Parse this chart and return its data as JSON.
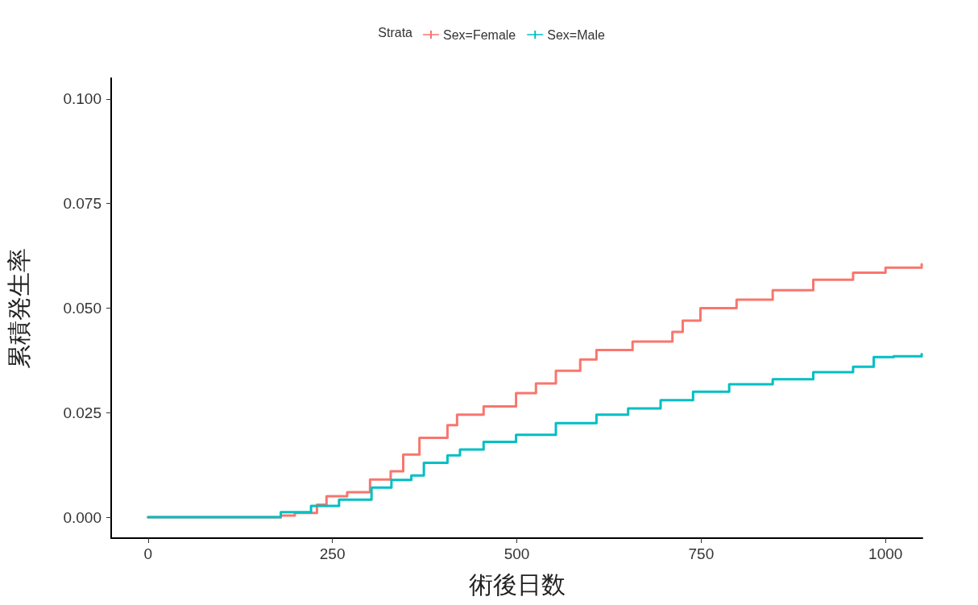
{
  "chart_data": {
    "type": "step",
    "xlabel": "術後日数",
    "ylabel": "累積発生率",
    "legend_title": "Strata",
    "legend": "top",
    "grid": false,
    "marker": "none",
    "xlim": [
      -50,
      1050
    ],
    "xticks": [
      0,
      250,
      500,
      750,
      1000
    ],
    "ylim": [
      -0.005,
      0.105
    ],
    "yticks": [
      {
        "value": 0,
        "label": "0.000"
      },
      {
        "value": 0.025,
        "label": "0.025"
      },
      {
        "value": 0.05,
        "label": "0.050"
      },
      {
        "value": 0.075,
        "label": "0.075"
      },
      {
        "value": 0.1,
        "label": "0.100"
      }
    ],
    "series": [
      {
        "name": "Sex=Female",
        "color": "#f8766d",
        "x": [
          0,
          150,
          180,
          199,
          229,
          242,
          270,
          301,
          329,
          346,
          368,
          406,
          419,
          455,
          499,
          526,
          553,
          586,
          608,
          657,
          711,
          725,
          749,
          798,
          847,
          902,
          956,
          1000,
          1049
        ],
        "values": [
          0,
          0,
          0.0004,
          0.001,
          0.003,
          0.005,
          0.006,
          0.009,
          0.011,
          0.015,
          0.019,
          0.022,
          0.0245,
          0.0265,
          0.0297,
          0.032,
          0.035,
          0.0377,
          0.04,
          0.042,
          0.0443,
          0.047,
          0.05,
          0.052,
          0.0543,
          0.0568,
          0.0585,
          0.0597,
          0.0605
        ]
      },
      {
        "name": "Sex=Male",
        "color": "#00bfc4",
        "x": [
          0,
          150,
          180,
          221,
          259,
          303,
          330,
          357,
          374,
          406,
          423,
          455,
          499,
          553,
          608,
          651,
          695,
          739,
          788,
          847,
          902,
          956,
          984,
          1011,
          1049
        ],
        "values": [
          0,
          0,
          0.0012,
          0.0027,
          0.0042,
          0.0071,
          0.0089,
          0.01,
          0.013,
          0.0148,
          0.0162,
          0.018,
          0.0197,
          0.0225,
          0.0245,
          0.026,
          0.028,
          0.03,
          0.0318,
          0.033,
          0.0347,
          0.036,
          0.0383,
          0.0385,
          0.039
        ]
      }
    ]
  }
}
